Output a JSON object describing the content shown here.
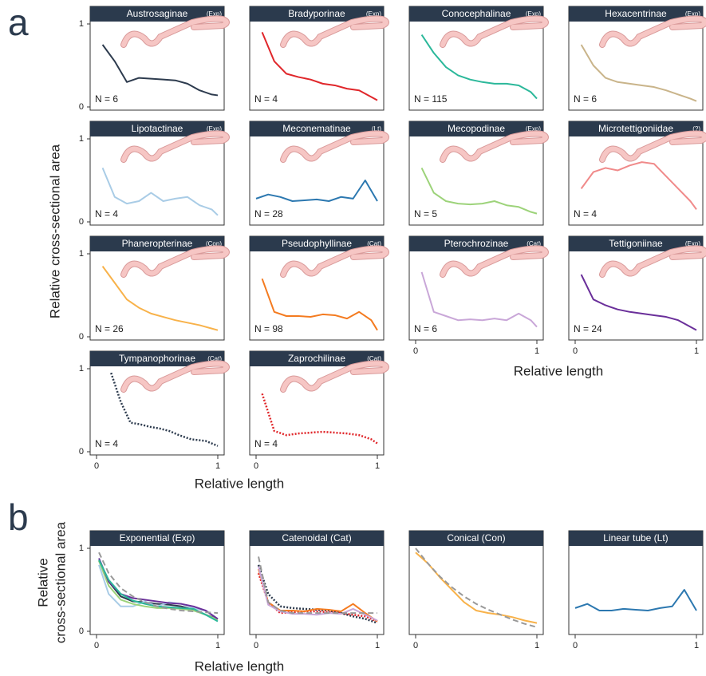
{
  "figure": {
    "label_a": "a",
    "label_b": "b",
    "ylabel_a": "Relative cross-sectional area",
    "ylabel_b_line1": "Relative",
    "ylabel_b_line2": "cross-sectional area",
    "xlabel": "Relative length"
  },
  "chart_data": [
    {
      "type": "line",
      "title": "Austrosaginae",
      "tag": "(Exp)",
      "annotation": "N = 6",
      "x": [
        0.05,
        0.15,
        0.25,
        0.35,
        0.45,
        0.55,
        0.65,
        0.75,
        0.85,
        0.95,
        1.0
      ],
      "series": [
        {
          "color": "#2d3b4e",
          "values": [
            0.75,
            0.55,
            0.3,
            0.35,
            0.34,
            0.33,
            0.32,
            0.28,
            0.2,
            0.15,
            0.14
          ]
        }
      ],
      "xlim": [
        0,
        1
      ],
      "ylim": [
        0,
        1
      ],
      "yticks": [
        0,
        1
      ]
    },
    {
      "type": "line",
      "title": "Bradyporinae",
      "tag": "(Exp)",
      "annotation": "N = 4",
      "x": [
        0.05,
        0.15,
        0.25,
        0.35,
        0.45,
        0.55,
        0.65,
        0.75,
        0.85,
        0.95,
        1.0
      ],
      "series": [
        {
          "color": "#e0262a",
          "values": [
            0.9,
            0.55,
            0.4,
            0.36,
            0.33,
            0.28,
            0.26,
            0.22,
            0.2,
            0.12,
            0.08
          ]
        }
      ],
      "xlim": [
        0,
        1
      ],
      "ylim": [
        0,
        1
      ]
    },
    {
      "type": "line",
      "title": "Conocephalinae",
      "tag": "(Exp)",
      "annotation": "N = 115",
      "x": [
        0.05,
        0.15,
        0.25,
        0.35,
        0.45,
        0.55,
        0.65,
        0.75,
        0.85,
        0.95,
        1.0
      ],
      "series": [
        {
          "color": "#2bb89a",
          "values": [
            0.87,
            0.65,
            0.48,
            0.38,
            0.33,
            0.3,
            0.28,
            0.28,
            0.26,
            0.18,
            0.1
          ]
        }
      ],
      "xlim": [
        0,
        1
      ],
      "ylim": [
        0,
        1
      ]
    },
    {
      "type": "line",
      "title": "Hexacentrinae",
      "tag": "(Exp)",
      "annotation": "N = 6",
      "x": [
        0.05,
        0.15,
        0.25,
        0.35,
        0.45,
        0.55,
        0.65,
        0.75,
        0.85,
        0.95,
        1.0
      ],
      "series": [
        {
          "color": "#c9b48a",
          "values": [
            0.75,
            0.5,
            0.35,
            0.3,
            0.28,
            0.26,
            0.24,
            0.2,
            0.15,
            0.1,
            0.07
          ]
        }
      ],
      "xlim": [
        0,
        1
      ],
      "ylim": [
        0,
        1
      ]
    },
    {
      "type": "line",
      "title": "Lipotactinae",
      "tag": "(Exp)",
      "annotation": "N = 4",
      "x": [
        0.05,
        0.15,
        0.25,
        0.35,
        0.45,
        0.55,
        0.65,
        0.75,
        0.85,
        0.95,
        1.0
      ],
      "series": [
        {
          "color": "#a9cce6",
          "values": [
            0.65,
            0.3,
            0.22,
            0.25,
            0.35,
            0.25,
            0.28,
            0.3,
            0.2,
            0.15,
            0.08
          ]
        }
      ],
      "xlim": [
        0,
        1
      ],
      "ylim": [
        0,
        1
      ],
      "yticks": [
        0,
        1
      ]
    },
    {
      "type": "line",
      "title": "Meconematinae",
      "tag": "(Lt)",
      "annotation": "N = 28",
      "x": [
        0.0,
        0.1,
        0.2,
        0.3,
        0.4,
        0.5,
        0.6,
        0.7,
        0.8,
        0.9,
        1.0
      ],
      "series": [
        {
          "color": "#2c78b0",
          "values": [
            0.28,
            0.33,
            0.3,
            0.25,
            0.26,
            0.27,
            0.25,
            0.3,
            0.28,
            0.5,
            0.25
          ]
        }
      ],
      "xlim": [
        0,
        1
      ],
      "ylim": [
        0,
        1
      ]
    },
    {
      "type": "line",
      "title": "Mecopodinae",
      "tag": "(Exp)",
      "annotation": "N = 5",
      "x": [
        0.05,
        0.15,
        0.25,
        0.35,
        0.45,
        0.55,
        0.65,
        0.75,
        0.85,
        0.95,
        1.0
      ],
      "series": [
        {
          "color": "#9dd37a",
          "values": [
            0.65,
            0.35,
            0.25,
            0.22,
            0.21,
            0.22,
            0.25,
            0.2,
            0.18,
            0.12,
            0.1
          ]
        }
      ],
      "xlim": [
        0,
        1
      ],
      "ylim": [
        0,
        1
      ]
    },
    {
      "type": "line",
      "title": "Microtettigoniidae",
      "tag": "(?)",
      "annotation": "N = 4",
      "x": [
        0.05,
        0.15,
        0.25,
        0.35,
        0.45,
        0.55,
        0.65,
        0.75,
        0.85,
        0.95,
        1.0
      ],
      "series": [
        {
          "color": "#f08a8a",
          "values": [
            0.4,
            0.6,
            0.65,
            0.62,
            0.68,
            0.72,
            0.7,
            0.55,
            0.4,
            0.25,
            0.15
          ]
        }
      ],
      "xlim": [
        0,
        1
      ],
      "ylim": [
        0,
        1
      ]
    },
    {
      "type": "line",
      "title": "Phaneropterinae",
      "tag": "(Con)",
      "annotation": "N = 26",
      "x": [
        0.05,
        0.15,
        0.25,
        0.35,
        0.45,
        0.55,
        0.65,
        0.75,
        0.85,
        0.95,
        1.0
      ],
      "series": [
        {
          "color": "#f8b24a",
          "values": [
            0.85,
            0.65,
            0.45,
            0.35,
            0.28,
            0.24,
            0.2,
            0.17,
            0.14,
            0.1,
            0.08
          ]
        }
      ],
      "xlim": [
        0,
        1
      ],
      "ylim": [
        0,
        1
      ],
      "yticks": [
        0,
        1
      ]
    },
    {
      "type": "line",
      "title": "Pseudophyllinae",
      "tag": "(Cat)",
      "annotation": "N = 98",
      "x": [
        0.05,
        0.15,
        0.25,
        0.35,
        0.45,
        0.55,
        0.65,
        0.75,
        0.85,
        0.95,
        1.0
      ],
      "series": [
        {
          "color": "#f47b20",
          "values": [
            0.7,
            0.3,
            0.25,
            0.25,
            0.24,
            0.27,
            0.26,
            0.22,
            0.3,
            0.2,
            0.08
          ]
        }
      ],
      "xlim": [
        0,
        1
      ],
      "ylim": [
        0,
        1
      ]
    },
    {
      "type": "line",
      "title": "Pterochrozinae",
      "tag": "(Cat)",
      "annotation": "N = 6",
      "x": [
        0.05,
        0.15,
        0.25,
        0.35,
        0.45,
        0.55,
        0.65,
        0.75,
        0.85,
        0.95,
        1.0
      ],
      "series": [
        {
          "color": "#c9a7d8",
          "values": [
            0.78,
            0.3,
            0.25,
            0.2,
            0.21,
            0.2,
            0.22,
            0.2,
            0.28,
            0.2,
            0.12
          ]
        }
      ],
      "xlim": [
        0,
        1
      ],
      "ylim": [
        0,
        1
      ],
      "xticks": [
        0,
        1
      ]
    },
    {
      "type": "line",
      "title": "Tettigoniinae",
      "tag": "(Exp)",
      "annotation": "N = 24",
      "x": [
        0.05,
        0.15,
        0.25,
        0.35,
        0.45,
        0.55,
        0.65,
        0.75,
        0.85,
        0.95,
        1.0
      ],
      "series": [
        {
          "color": "#6a2f9a",
          "values": [
            0.75,
            0.45,
            0.38,
            0.33,
            0.3,
            0.28,
            0.26,
            0.24,
            0.2,
            0.12,
            0.08
          ]
        }
      ],
      "xlim": [
        0,
        1
      ],
      "ylim": [
        0,
        1
      ],
      "xticks": [
        0,
        1
      ]
    },
    {
      "type": "line",
      "title": "Tympanophorinae",
      "tag": "(Cat)",
      "annotation": "N = 4",
      "x": [
        0.12,
        0.2,
        0.28,
        0.36,
        0.44,
        0.52,
        0.6,
        0.68,
        0.78,
        0.9,
        1.0
      ],
      "series": [
        {
          "color": "#2d3b4e",
          "dash": "dotted",
          "values": [
            0.95,
            0.6,
            0.35,
            0.33,
            0.3,
            0.28,
            0.25,
            0.2,
            0.15,
            0.13,
            0.07
          ]
        }
      ],
      "xlim": [
        0,
        1
      ],
      "ylim": [
        0,
        1
      ],
      "yticks": [
        0,
        1
      ],
      "xticks": [
        0,
        1
      ]
    },
    {
      "type": "line",
      "title": "Zaprochilinae",
      "tag": "(Cat)",
      "annotation": "N = 4",
      "x": [
        0.05,
        0.15,
        0.25,
        0.35,
        0.45,
        0.55,
        0.65,
        0.75,
        0.85,
        0.95,
        1.0
      ],
      "series": [
        {
          "color": "#e0262a",
          "dash": "dotted",
          "values": [
            0.7,
            0.25,
            0.2,
            0.22,
            0.23,
            0.24,
            0.23,
            0.22,
            0.2,
            0.15,
            0.1
          ]
        }
      ],
      "xlim": [
        0,
        1
      ],
      "ylim": [
        0,
        1
      ],
      "xticks": [
        0,
        1
      ]
    },
    {
      "type": "line",
      "title": "Exponential (Exp)",
      "x": [
        0.02,
        0.1,
        0.2,
        0.3,
        0.4,
        0.5,
        0.6,
        0.7,
        0.8,
        0.9,
        1.0
      ],
      "series": [
        {
          "color": "#2d3b4e",
          "values": [
            0.85,
            0.6,
            0.42,
            0.36,
            0.35,
            0.33,
            0.32,
            0.3,
            0.26,
            0.2,
            0.15
          ]
        },
        {
          "color": "#a9cce6",
          "values": [
            0.8,
            0.45,
            0.3,
            0.3,
            0.36,
            0.3,
            0.35,
            0.33,
            0.28,
            0.25,
            0.15
          ]
        },
        {
          "color": "#9dd37a",
          "values": [
            0.85,
            0.55,
            0.38,
            0.33,
            0.3,
            0.28,
            0.28,
            0.27,
            0.25,
            0.2,
            0.14
          ]
        },
        {
          "color": "#6a2f9a",
          "values": [
            0.88,
            0.6,
            0.45,
            0.4,
            0.38,
            0.36,
            0.34,
            0.33,
            0.3,
            0.25,
            0.15
          ]
        },
        {
          "color": "#2bb89a",
          "values": [
            0.86,
            0.62,
            0.45,
            0.37,
            0.33,
            0.3,
            0.29,
            0.28,
            0.27,
            0.2,
            0.12
          ]
        },
        {
          "color": "#999999",
          "dash": "dashed",
          "values": [
            0.95,
            0.7,
            0.52,
            0.42,
            0.35,
            0.3,
            0.27,
            0.25,
            0.24,
            0.23,
            0.22
          ]
        }
      ],
      "xlim": [
        0,
        1
      ],
      "ylim": [
        0,
        1
      ],
      "yticks": [
        0,
        1
      ],
      "xticks": [
        0,
        1
      ]
    },
    {
      "type": "line",
      "title": "Catenoidal (Cat)",
      "x": [
        0.02,
        0.1,
        0.2,
        0.3,
        0.4,
        0.5,
        0.6,
        0.7,
        0.8,
        0.9,
        1.0
      ],
      "series": [
        {
          "color": "#2d3b4e",
          "dash": "dotted",
          "values": [
            0.8,
            0.45,
            0.3,
            0.28,
            0.27,
            0.26,
            0.25,
            0.22,
            0.18,
            0.15,
            0.1
          ]
        },
        {
          "color": "#e0262a",
          "dash": "dotted",
          "values": [
            0.7,
            0.35,
            0.22,
            0.23,
            0.24,
            0.24,
            0.23,
            0.22,
            0.2,
            0.18,
            0.12
          ]
        },
        {
          "color": "#f47b20",
          "values": [
            0.75,
            0.35,
            0.25,
            0.25,
            0.24,
            0.27,
            0.26,
            0.24,
            0.33,
            0.22,
            0.12
          ]
        },
        {
          "color": "#c9a7d8",
          "values": [
            0.78,
            0.32,
            0.24,
            0.21,
            0.21,
            0.2,
            0.22,
            0.21,
            0.27,
            0.2,
            0.13
          ]
        },
        {
          "color": "#999999",
          "dash": "dashed",
          "values": [
            0.9,
            0.35,
            0.25,
            0.22,
            0.22,
            0.22,
            0.22,
            0.22,
            0.22,
            0.22,
            0.22
          ]
        }
      ],
      "xlim": [
        0,
        1
      ],
      "ylim": [
        0,
        1
      ],
      "xticks": [
        0,
        1
      ]
    },
    {
      "type": "line",
      "title": "Conical (Con)",
      "x": [
        0.0,
        0.1,
        0.2,
        0.3,
        0.4,
        0.5,
        0.6,
        0.7,
        0.8,
        0.9,
        1.0
      ],
      "series": [
        {
          "color": "#f8b24a",
          "values": [
            0.95,
            0.82,
            0.65,
            0.5,
            0.35,
            0.25,
            0.22,
            0.2,
            0.17,
            0.13,
            0.1
          ]
        },
        {
          "color": "#999999",
          "dash": "dashed",
          "values": [
            1.0,
            0.82,
            0.66,
            0.53,
            0.42,
            0.33,
            0.26,
            0.2,
            0.14,
            0.09,
            0.05
          ]
        }
      ],
      "xlim": [
        0,
        1
      ],
      "ylim": [
        0,
        1
      ],
      "xticks": [
        0,
        1
      ]
    },
    {
      "type": "line",
      "title": "Linear tube (Lt)",
      "x": [
        0.0,
        0.1,
        0.2,
        0.3,
        0.4,
        0.5,
        0.6,
        0.7,
        0.8,
        0.9,
        1.0
      ],
      "series": [
        {
          "color": "#2c78b0",
          "values": [
            0.28,
            0.33,
            0.25,
            0.25,
            0.27,
            0.26,
            0.25,
            0.28,
            0.3,
            0.5,
            0.25
          ]
        }
      ],
      "xlim": [
        0,
        1
      ],
      "ylim": [
        0,
        1
      ],
      "xticks": [
        0,
        1
      ]
    }
  ]
}
